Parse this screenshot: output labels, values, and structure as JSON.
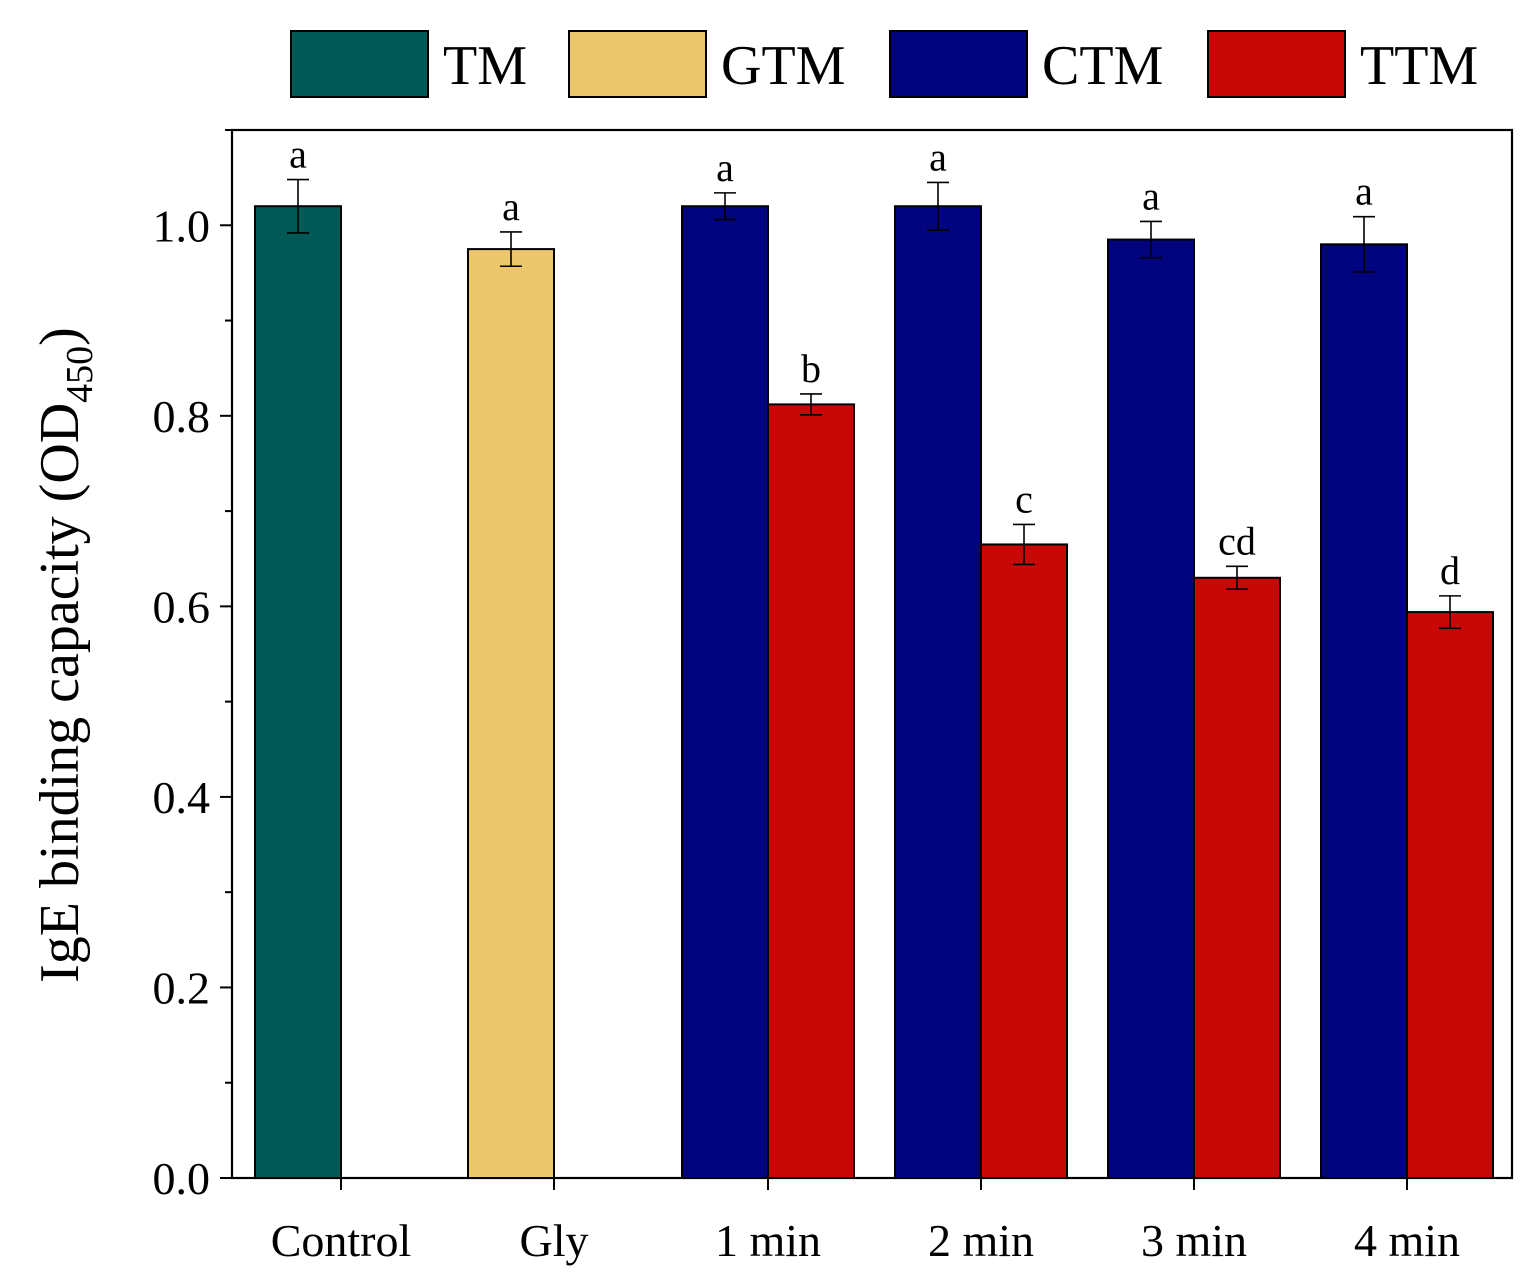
{
  "chart_data": {
    "type": "bar",
    "title": "",
    "xlabel": "",
    "ylabel": "IgE binding capacity (OD",
    "ylabel_subscript": "450",
    "ylabel_close": ")",
    "ylim": [
      0,
      1.1
    ],
    "yticks": [
      "0.0",
      "0.2",
      "0.4",
      "0.6",
      "0.8",
      "1.0"
    ],
    "categories": [
      "Control",
      "Gly",
      "1 min",
      "2 min",
      "3 min",
      "4 min"
    ],
    "legend_position": "top",
    "series": [
      {
        "name": "TM",
        "color": "#025a57",
        "values": [
          1.02,
          null,
          null,
          null,
          null,
          null
        ],
        "errors": [
          0.028,
          null,
          null,
          null,
          null,
          null
        ],
        "labels": [
          "a",
          null,
          null,
          null,
          null,
          null
        ]
      },
      {
        "name": "GTM",
        "color": "#ecc66a",
        "values": [
          null,
          0.975,
          null,
          null,
          null,
          null
        ],
        "errors": [
          null,
          0.018,
          null,
          null,
          null,
          null
        ],
        "labels": [
          null,
          "a",
          null,
          null,
          null,
          null
        ]
      },
      {
        "name": "CTM",
        "color": "#02047e",
        "values": [
          null,
          null,
          1.02,
          1.02,
          0.985,
          0.98
        ],
        "errors": [
          null,
          null,
          0.014,
          0.025,
          0.019,
          0.029
        ],
        "labels": [
          null,
          null,
          "a",
          "a",
          "a",
          "a"
        ]
      },
      {
        "name": "TTM",
        "color": "#c80707",
        "values": [
          null,
          null,
          0.812,
          0.665,
          0.63,
          0.594
        ],
        "errors": [
          null,
          null,
          0.011,
          0.021,
          0.012,
          0.017
        ],
        "labels": [
          null,
          null,
          "b",
          "c",
          "cd",
          "d"
        ]
      }
    ]
  }
}
